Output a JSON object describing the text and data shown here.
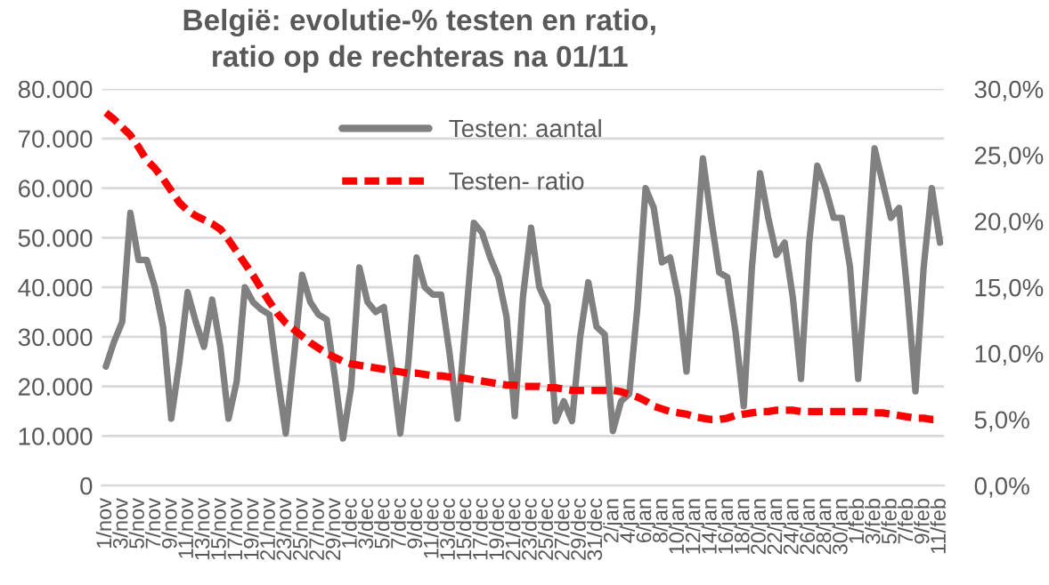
{
  "chart_data": {
    "type": "line",
    "title": "België: evolutie-% testen en ratio,\nratio op de rechteras na 01/11",
    "categories": [
      "1/nov",
      null,
      "3/nov",
      null,
      "5/nov",
      null,
      "7/nov",
      null,
      "9/nov",
      null,
      "11/nov",
      null,
      "13/nov",
      null,
      "15/nov",
      null,
      "17/nov",
      null,
      "19/nov",
      null,
      "21/nov",
      null,
      "23/nov",
      null,
      "25/nov",
      null,
      "27/nov",
      null,
      "29/nov",
      null,
      "1/dec",
      null,
      "3/dec",
      null,
      "5/dec",
      null,
      "7/dec",
      null,
      "9/dec",
      null,
      "11/dec",
      null,
      "13/dec",
      null,
      "15/dec",
      null,
      "17/dec",
      null,
      "19/dec",
      null,
      "21/dec",
      null,
      "23/dec",
      null,
      "25/dec",
      null,
      "27/dec",
      null,
      "29/dec",
      null,
      "31/dec",
      null,
      "2/jan",
      null,
      "4/jan",
      null,
      "6/jan",
      null,
      "8/jan",
      null,
      "10/jan",
      null,
      "12/jan",
      null,
      "14/jan",
      null,
      "16/jan",
      null,
      "18/jan",
      null,
      "20/jan",
      null,
      "22/jan",
      null,
      "24/jan",
      null,
      "26/jan",
      null,
      "28/jan",
      null,
      "30/jan",
      null,
      "1/feb",
      null,
      "3/feb",
      null,
      "5/feb",
      null,
      "7/feb",
      null,
      "9/feb",
      null,
      "11/feb"
    ],
    "series": [
      {
        "name": "Testen: aantal",
        "color": "#808080",
        "line_style": "solid",
        "values": [
          24000,
          29000,
          33000,
          55000,
          45500,
          45500,
          40000,
          32000,
          13500,
          25000,
          39000,
          33000,
          28000,
          37500,
          28000,
          13500,
          21000,
          40000,
          37000,
          35500,
          34500,
          22000,
          10500,
          26000,
          42500,
          37000,
          34500,
          33500,
          22000,
          9500,
          20000,
          44000,
          37000,
          35000,
          36000,
          24000,
          10500,
          25000,
          46000,
          40000,
          38500,
          38500,
          27000,
          13500,
          33000,
          53000,
          51000,
          46000,
          42000,
          34000,
          14000,
          38000,
          52000,
          40000,
          36400,
          13000,
          17000,
          13000,
          30000,
          41000,
          32000,
          30500,
          11000,
          17000,
          18500,
          36000,
          60000,
          56000,
          45000,
          46000,
          38000,
          23000,
          44000,
          66000,
          54000,
          43000,
          42000,
          31000,
          16000,
          44000,
          63000,
          54000,
          46500,
          49000,
          38000,
          21500,
          49000,
          64500,
          60000,
          54000,
          54000,
          44000,
          21500,
          44000,
          68000,
          61000,
          54000,
          56000,
          39000,
          19000,
          44000,
          60000,
          49000
        ]
      },
      {
        "name": "Testen- ratio",
        "color": "#ff0000",
        "axis": "y2",
        "line_style": "dashed",
        "values": [
          28.2,
          27.7,
          27.1,
          26.5,
          25.6,
          24.6,
          24.0,
          23.2,
          22.3,
          21.4,
          20.8,
          20.4,
          20.1,
          19.8,
          19.4,
          18.6,
          17.7,
          16.8,
          15.9,
          14.9,
          13.9,
          13.0,
          12.3,
          11.8,
          11.3,
          10.8,
          10.4,
          10.0,
          9.7,
          9.4,
          9.2,
          9.1,
          9.0,
          8.9,
          8.8,
          8.7,
          8.6,
          8.5,
          8.5,
          8.4,
          8.3,
          8.3,
          8.2,
          8.2,
          8.1,
          8.0,
          7.9,
          7.8,
          7.7,
          7.6,
          7.6,
          7.5,
          7.5,
          7.5,
          7.4,
          7.4,
          7.3,
          7.2,
          7.2,
          7.2,
          7.2,
          7.2,
          7.2,
          7.1,
          6.9,
          6.7,
          6.4,
          6.0,
          5.8,
          5.6,
          5.5,
          5.4,
          5.2,
          5.1,
          5.0,
          5.0,
          5.1,
          5.3,
          5.4,
          5.5,
          5.6,
          5.6,
          5.7,
          5.7,
          5.7,
          5.6,
          5.6,
          5.6,
          5.6,
          5.6,
          5.6,
          5.6,
          5.6,
          5.6,
          5.5,
          5.5,
          5.4,
          5.3,
          5.2,
          5.1,
          5.1,
          5.0,
          5.0
        ]
      }
    ],
    "ylim": [
      0,
      80000
    ],
    "yticks": [
      0,
      {
        "value": 10000,
        "label": "10.000"
      },
      {
        "value": 20000,
        "label": "20.000"
      },
      {
        "value": 30000,
        "label": "30.000"
      },
      {
        "value": 40000,
        "label": "40.000"
      },
      {
        "value": 50000,
        "label": "50.000"
      },
      {
        "value": 60000,
        "label": "60.000"
      },
      {
        "value": 70000,
        "label": "70.000"
      },
      {
        "value": 80000,
        "label": "80.000"
      }
    ],
    "y2lim": [
      0,
      30
    ],
    "y2ticks": [
      {
        "value": 0,
        "label": "0,0%"
      },
      {
        "value": 5,
        "label": "5,0%"
      },
      {
        "value": 10,
        "label": "10,0%"
      },
      {
        "value": 15,
        "label": "15,0%"
      },
      {
        "value": 20,
        "label": "20,0%"
      },
      {
        "value": 25,
        "label": "25,0%"
      },
      {
        "value": 30,
        "label": "30,0%"
      }
    ],
    "grid": "y",
    "legend": "top",
    "marker": "none"
  }
}
